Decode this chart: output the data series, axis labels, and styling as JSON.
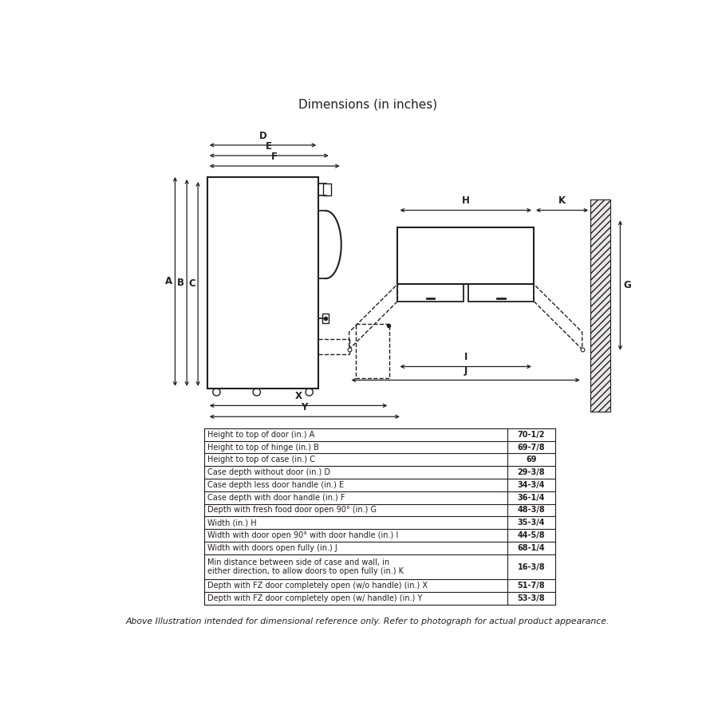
{
  "title": "Dimensions (in inches)",
  "footer": "Above Illustration intended for dimensional reference only. Refer to photograph for actual product appearance.",
  "table_rows": [
    [
      "Height to top of door (in.) A",
      "70-1/2"
    ],
    [
      "Height to top of hinge (in.) B",
      "69-7/8"
    ],
    [
      "Height to top of case (in.) C",
      "69"
    ],
    [
      "Case depth without door (in.) D",
      "29-3/8"
    ],
    [
      "Case depth less door handle (in.) E",
      "34-3/4"
    ],
    [
      "Case depth with door handle (in.) F",
      "36-1/4"
    ],
    [
      "Depth with fresh food door open 90° (in.) G",
      "48-3/8"
    ],
    [
      "Width (in.) H",
      "35-3/4"
    ],
    [
      "Width with door open 90° with door handle (in.) I",
      "44-5/8"
    ],
    [
      "Width with doors open fully (in.) J",
      "68-1/4"
    ],
    [
      "Min distance between side of case and wall, in\neither direction, to allow doors to open fully (in.) K",
      "16-3/8"
    ],
    [
      "Depth with FZ door completely open (w/o handle) (in.) X",
      "51-7/8"
    ],
    [
      "Depth with FZ door completely open (w/ handle) (in.) Y",
      "53-3/8"
    ]
  ],
  "bg_color": "#ffffff",
  "line_color": "#231f20",
  "text_color": "#231f20"
}
